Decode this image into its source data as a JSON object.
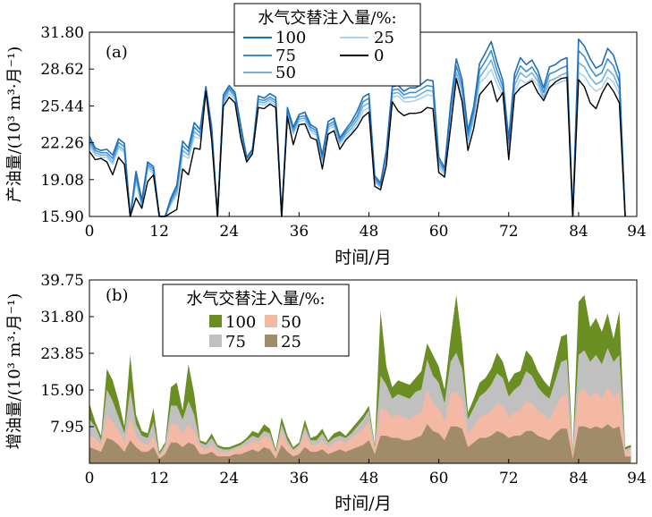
{
  "chart_data": [
    {
      "panel": "(a)",
      "type": "line",
      "title": "",
      "xlabel": "时间/月",
      "ylabel": "产油量/(10³ m³·月⁻¹)",
      "xlim": [
        0,
        94
      ],
      "ylim": [
        15.9,
        31.8
      ],
      "xticks": [
        0,
        12,
        24,
        36,
        48,
        60,
        72,
        84,
        94
      ],
      "yticks": [
        15.9,
        19.08,
        22.26,
        25.44,
        28.62,
        31.8
      ],
      "ytick_labels": [
        "15.90",
        "19.08",
        "22.26",
        "25.44",
        "28.62",
        "31.80"
      ],
      "grid": false,
      "legend": {
        "title": "水气交替注入量/%:",
        "placement": "top-center",
        "columns": 2
      },
      "x": [
        0,
        1,
        2,
        3,
        4,
        5,
        6,
        7,
        8,
        9,
        10,
        11,
        12,
        13,
        14,
        15,
        16,
        17,
        18,
        19,
        20,
        21,
        22,
        23,
        24,
        25,
        26,
        27,
        28,
        29,
        30,
        31,
        32,
        33,
        34,
        35,
        36,
        37,
        38,
        39,
        40,
        41,
        42,
        43,
        44,
        45,
        46,
        47,
        48,
        49,
        50,
        51,
        52,
        53,
        54,
        55,
        56,
        57,
        58,
        59,
        60,
        61,
        62,
        63,
        64,
        65,
        66,
        67,
        68,
        69,
        70,
        71,
        72,
        73,
        74,
        75,
        76,
        77,
        78,
        79,
        80,
        81,
        82,
        83,
        84,
        85,
        86,
        87,
        88,
        89,
        90,
        91,
        92
      ],
      "series": [
        {
          "name": "100",
          "color": "#1f6fb8",
          "values": [
            22.8,
            21.8,
            21.6,
            21.7,
            21.2,
            22.6,
            22.2,
            15.9,
            19.8,
            17.3,
            20.6,
            20.2,
            15.9,
            15.9,
            17.5,
            18.6,
            22.4,
            21.8,
            24.0,
            23.4,
            27.1,
            23.6,
            15.9,
            26.4,
            27.2,
            26.6,
            23.7,
            21.0,
            21.7,
            26.3,
            26.1,
            26.5,
            26.2,
            15.9,
            25.3,
            23.6,
            24.7,
            24.9,
            23.8,
            23.5,
            21.2,
            24.1,
            24.4,
            22.7,
            23.4,
            24.1,
            25.0,
            26.2,
            26.5,
            19.4,
            18.8,
            21.6,
            27.1,
            27.2,
            26.7,
            27.0,
            27.0,
            27.3,
            27.7,
            27.6,
            21.0,
            20.1,
            25.5,
            29.5,
            27.7,
            23.3,
            25.4,
            29.1,
            30.0,
            31.0,
            29.2,
            27.6,
            22.6,
            28.2,
            29.6,
            29.0,
            29.4,
            28.5,
            27.0,
            28.8,
            29.0,
            29.4,
            29.6,
            15.9,
            31.2,
            30.6,
            29.5,
            28.7,
            29.0,
            30.4,
            29.8,
            28.2,
            15.9
          ]
        },
        {
          "name": "75",
          "color": "#3d8fd1",
          "values": [
            22.5,
            21.6,
            21.4,
            21.4,
            20.9,
            22.3,
            21.9,
            15.9,
            19.5,
            17.1,
            20.4,
            20.0,
            15.9,
            15.9,
            17.3,
            18.3,
            22.0,
            21.5,
            23.6,
            23.1,
            26.9,
            23.3,
            15.9,
            26.1,
            27.0,
            26.4,
            23.4,
            20.9,
            21.6,
            26.0,
            25.9,
            26.2,
            25.9,
            15.9,
            25.1,
            23.4,
            24.5,
            24.6,
            23.6,
            23.3,
            21.0,
            23.8,
            24.1,
            22.5,
            23.2,
            23.8,
            24.6,
            25.8,
            26.1,
            19.2,
            18.6,
            21.4,
            26.8,
            26.9,
            26.4,
            26.6,
            26.6,
            26.9,
            27.2,
            27.1,
            20.7,
            19.9,
            25.1,
            28.9,
            27.2,
            22.9,
            25.0,
            28.5,
            29.3,
            30.2,
            28.5,
            27.1,
            22.2,
            27.7,
            28.9,
            28.4,
            28.8,
            28.0,
            26.6,
            28.2,
            28.4,
            28.7,
            28.9,
            15.9,
            30.2,
            29.7,
            28.7,
            28.0,
            28.3,
            29.5,
            28.9,
            27.5,
            15.9
          ]
        },
        {
          "name": "50",
          "color": "#6fb2e3",
          "values": [
            22.2,
            21.4,
            21.2,
            21.2,
            20.6,
            22.0,
            21.6,
            15.9,
            19.2,
            16.9,
            20.2,
            19.8,
            15.9,
            15.9,
            17.1,
            18.0,
            21.6,
            21.2,
            23.2,
            22.8,
            26.8,
            23.0,
            15.9,
            25.8,
            26.8,
            26.2,
            23.1,
            20.8,
            21.5,
            25.8,
            25.7,
            26.0,
            25.7,
            15.9,
            24.9,
            23.2,
            24.3,
            24.4,
            23.4,
            23.1,
            20.8,
            23.6,
            23.9,
            22.3,
            23.0,
            23.5,
            24.3,
            25.4,
            25.7,
            19.0,
            18.5,
            21.2,
            26.5,
            26.6,
            26.1,
            26.2,
            26.2,
            26.5,
            26.8,
            26.7,
            20.4,
            19.7,
            24.7,
            28.3,
            26.8,
            22.5,
            24.6,
            27.9,
            28.6,
            29.4,
            27.9,
            26.7,
            21.9,
            27.2,
            28.3,
            27.9,
            28.3,
            27.6,
            26.2,
            27.6,
            27.8,
            28.1,
            28.3,
            15.9,
            29.2,
            28.8,
            27.9,
            27.3,
            27.6,
            28.6,
            28.1,
            26.9,
            15.9
          ]
        },
        {
          "name": "25",
          "color": "#a9d3f2",
          "values": [
            21.9,
            21.2,
            21.0,
            21.0,
            20.4,
            21.8,
            21.4,
            15.9,
            18.9,
            16.7,
            20.0,
            19.6,
            15.9,
            15.9,
            16.9,
            17.8,
            21.2,
            20.9,
            22.8,
            22.6,
            26.6,
            22.8,
            15.9,
            25.6,
            26.5,
            26.0,
            22.9,
            20.7,
            21.4,
            25.6,
            25.5,
            25.8,
            25.5,
            15.9,
            24.7,
            23.0,
            24.1,
            24.2,
            23.2,
            22.9,
            20.6,
            23.4,
            23.7,
            22.1,
            22.8,
            23.2,
            24.0,
            25.0,
            25.3,
            18.8,
            18.4,
            21.0,
            26.2,
            26.3,
            25.8,
            25.8,
            25.9,
            26.1,
            26.4,
            26.3,
            20.1,
            19.5,
            24.3,
            27.8,
            26.4,
            22.1,
            24.2,
            27.4,
            27.9,
            28.6,
            27.3,
            26.3,
            21.6,
            26.7,
            27.7,
            27.4,
            27.8,
            27.2,
            25.9,
            27.1,
            27.3,
            27.5,
            27.7,
            15.9,
            28.3,
            28.0,
            27.2,
            26.7,
            27.0,
            27.9,
            27.5,
            26.4,
            15.9
          ]
        },
        {
          "name": "0",
          "color": "#000000",
          "values": [
            21.5,
            20.8,
            20.9,
            20.6,
            19.5,
            21.0,
            20.4,
            15.9,
            17.5,
            16.6,
            18.9,
            19.5,
            15.9,
            15.9,
            16.2,
            16.5,
            20.0,
            19.5,
            21.8,
            21.7,
            26.7,
            22.5,
            15.9,
            25.4,
            26.2,
            25.7,
            22.6,
            20.6,
            21.3,
            25.3,
            25.2,
            25.6,
            25.3,
            15.9,
            24.5,
            22.1,
            23.8,
            23.9,
            22.7,
            22.5,
            20.0,
            23.0,
            23.3,
            21.7,
            22.5,
            23.0,
            23.6,
            24.5,
            24.9,
            18.5,
            18.2,
            20.3,
            25.8,
            25.0,
            24.6,
            24.8,
            24.8,
            24.9,
            25.3,
            25.2,
            19.7,
            19.3,
            23.5,
            27.8,
            25.8,
            21.6,
            23.5,
            26.4,
            27.0,
            27.6,
            25.8,
            26.6,
            20.8,
            26.4,
            27.0,
            27.3,
            27.6,
            26.6,
            25.9,
            27.0,
            27.5,
            27.8,
            27.9,
            15.9,
            27.7,
            27.1,
            25.7,
            25.2,
            26.5,
            27.4,
            26.7,
            25.7,
            15.9
          ]
        }
      ]
    },
    {
      "panel": "(b)",
      "type": "area",
      "title": "",
      "xlabel": "时间/月",
      "ylabel": "增油量/(10³ m³·月⁻¹)",
      "xlim": [
        0,
        94
      ],
      "ylim": [
        0,
        39.75
      ],
      "xticks": [
        0,
        12,
        24,
        36,
        48,
        60,
        72,
        84,
        94
      ],
      "yticks": [
        7.95,
        15.9,
        23.85,
        31.8,
        39.75
      ],
      "ytick_labels": [
        "7.95",
        "15.90",
        "23.85",
        "31.80",
        "39.75"
      ],
      "grid": false,
      "legend": {
        "title": "水气交替注入量/%:",
        "placement": "top-left",
        "columns": 2
      },
      "x": [
        0,
        1,
        2,
        3,
        4,
        5,
        6,
        7,
        8,
        9,
        10,
        11,
        12,
        13,
        14,
        15,
        16,
        17,
        18,
        19,
        20,
        21,
        22,
        23,
        24,
        25,
        26,
        27,
        28,
        29,
        30,
        31,
        32,
        33,
        34,
        35,
        36,
        37,
        38,
        39,
        40,
        41,
        42,
        43,
        44,
        45,
        46,
        47,
        48,
        49,
        50,
        51,
        52,
        53,
        54,
        55,
        56,
        57,
        58,
        59,
        60,
        61,
        62,
        63,
        64,
        65,
        66,
        67,
        68,
        69,
        70,
        71,
        72,
        73,
        74,
        75,
        76,
        77,
        78,
        79,
        80,
        81,
        82,
        83,
        84,
        85,
        86,
        87,
        88,
        89,
        90,
        91,
        92,
        93
      ],
      "series": [
        {
          "name": "100",
          "color": "#6b8e23",
          "values": [
            13.0,
            9.0,
            6.0,
            20.5,
            18.0,
            13.5,
            8.0,
            23.5,
            10.5,
            7.0,
            6.5,
            12.0,
            2.5,
            4.5,
            16.5,
            17.5,
            11.5,
            21.5,
            15.0,
            5.0,
            4.5,
            6.5,
            4.0,
            3.5,
            3.5,
            4.0,
            4.5,
            5.5,
            7.0,
            6.5,
            8.5,
            7.5,
            3.0,
            10.0,
            6.0,
            3.5,
            4.5,
            9.5,
            5.5,
            6.0,
            7.5,
            5.0,
            6.5,
            7.0,
            6.0,
            7.5,
            9.0,
            10.5,
            12.5,
            4.0,
            33.0,
            21.0,
            16.5,
            18.0,
            17.5,
            17.0,
            18.5,
            20.0,
            26.0,
            23.5,
            21.0,
            16.0,
            27.0,
            36.5,
            26.0,
            11.0,
            14.0,
            17.5,
            18.5,
            20.5,
            24.0,
            22.0,
            17.5,
            19.5,
            20.0,
            24.5,
            23.0,
            20.0,
            18.0,
            16.5,
            22.0,
            27.5,
            28.0,
            3.0,
            35.0,
            36.5,
            29.5,
            31.5,
            28.5,
            32.5,
            27.0,
            33.0,
            3.5,
            4.0
          ]
        },
        {
          "name": "75",
          "color": "#c0c0c0",
          "values": [
            9.5,
            8.0,
            5.0,
            16.0,
            13.5,
            10.0,
            6.5,
            16.0,
            8.5,
            6.0,
            5.5,
            9.0,
            2.0,
            4.0,
            12.5,
            12.5,
            9.5,
            13.5,
            10.5,
            4.5,
            4.0,
            5.5,
            3.5,
            3.0,
            3.0,
            3.5,
            4.0,
            5.0,
            6.0,
            5.5,
            7.0,
            6.5,
            2.5,
            8.5,
            5.0,
            3.0,
            4.0,
            8.0,
            5.0,
            5.0,
            6.5,
            4.5,
            5.5,
            6.0,
            5.5,
            6.5,
            8.0,
            9.5,
            11.5,
            3.5,
            19.0,
            17.0,
            14.0,
            15.0,
            14.5,
            14.0,
            15.5,
            16.0,
            22.5,
            19.0,
            17.5,
            13.0,
            22.0,
            24.0,
            20.5,
            9.5,
            12.0,
            14.5,
            15.5,
            17.0,
            19.5,
            18.5,
            14.5,
            16.0,
            17.0,
            20.0,
            19.0,
            16.5,
            15.0,
            14.0,
            18.0,
            22.0,
            22.5,
            2.5,
            23.5,
            24.5,
            22.0,
            23.5,
            21.5,
            25.0,
            22.0,
            23.5,
            3.0,
            3.5
          ]
        },
        {
          "name": "50",
          "color": "#f4b9a5",
          "values": [
            6.0,
            5.5,
            4.0,
            10.5,
            9.0,
            7.0,
            4.5,
            10.0,
            6.0,
            4.5,
            4.0,
            6.0,
            1.5,
            3.0,
            8.5,
            8.5,
            6.5,
            8.5,
            7.0,
            3.5,
            3.0,
            4.0,
            2.5,
            2.5,
            2.5,
            3.0,
            3.5,
            4.0,
            5.0,
            4.5,
            6.0,
            5.5,
            2.0,
            7.0,
            4.0,
            2.5,
            3.5,
            6.5,
            4.0,
            4.0,
            5.0,
            3.5,
            4.5,
            5.0,
            4.5,
            5.5,
            6.5,
            7.5,
            9.0,
            3.0,
            12.0,
            11.5,
            10.0,
            10.5,
            10.0,
            9.5,
            10.5,
            11.0,
            16.0,
            13.0,
            12.0,
            9.0,
            15.0,
            15.5,
            14.0,
            6.5,
            8.0,
            10.0,
            10.5,
            11.5,
            13.0,
            12.5,
            10.0,
            11.0,
            11.5,
            13.5,
            13.0,
            11.5,
            10.5,
            9.5,
            12.0,
            14.5,
            15.0,
            2.0,
            15.5,
            16.0,
            14.5,
            15.5,
            14.0,
            16.5,
            14.5,
            15.5,
            2.5,
            3.0
          ]
        },
        {
          "name": "25",
          "color": "#a08c6a",
          "values": [
            3.5,
            3.0,
            2.5,
            5.5,
            5.0,
            4.0,
            2.5,
            5.0,
            3.5,
            2.5,
            2.5,
            3.5,
            1.0,
            2.0,
            4.5,
            4.5,
            3.5,
            4.5,
            4.0,
            2.0,
            2.0,
            2.5,
            1.5,
            1.5,
            1.5,
            2.0,
            2.0,
            2.5,
            3.0,
            2.5,
            3.5,
            3.0,
            1.0,
            4.0,
            2.5,
            1.5,
            2.0,
            3.5,
            2.5,
            2.5,
            3.0,
            2.0,
            2.5,
            3.0,
            2.5,
            3.0,
            3.5,
            4.0,
            5.0,
            2.0,
            6.0,
            6.0,
            5.5,
            5.5,
            5.0,
            5.0,
            5.5,
            6.0,
            8.5,
            7.0,
            6.5,
            5.0,
            8.0,
            8.0,
            7.5,
            3.5,
            4.5,
            5.5,
            5.5,
            6.0,
            7.0,
            6.5,
            5.5,
            6.0,
            6.0,
            7.0,
            7.0,
            6.0,
            5.5,
            5.0,
            6.5,
            7.5,
            7.5,
            1.0,
            8.0,
            8.0,
            7.5,
            8.0,
            7.5,
            8.5,
            7.5,
            8.0,
            1.5,
            1.5
          ]
        }
      ]
    }
  ]
}
